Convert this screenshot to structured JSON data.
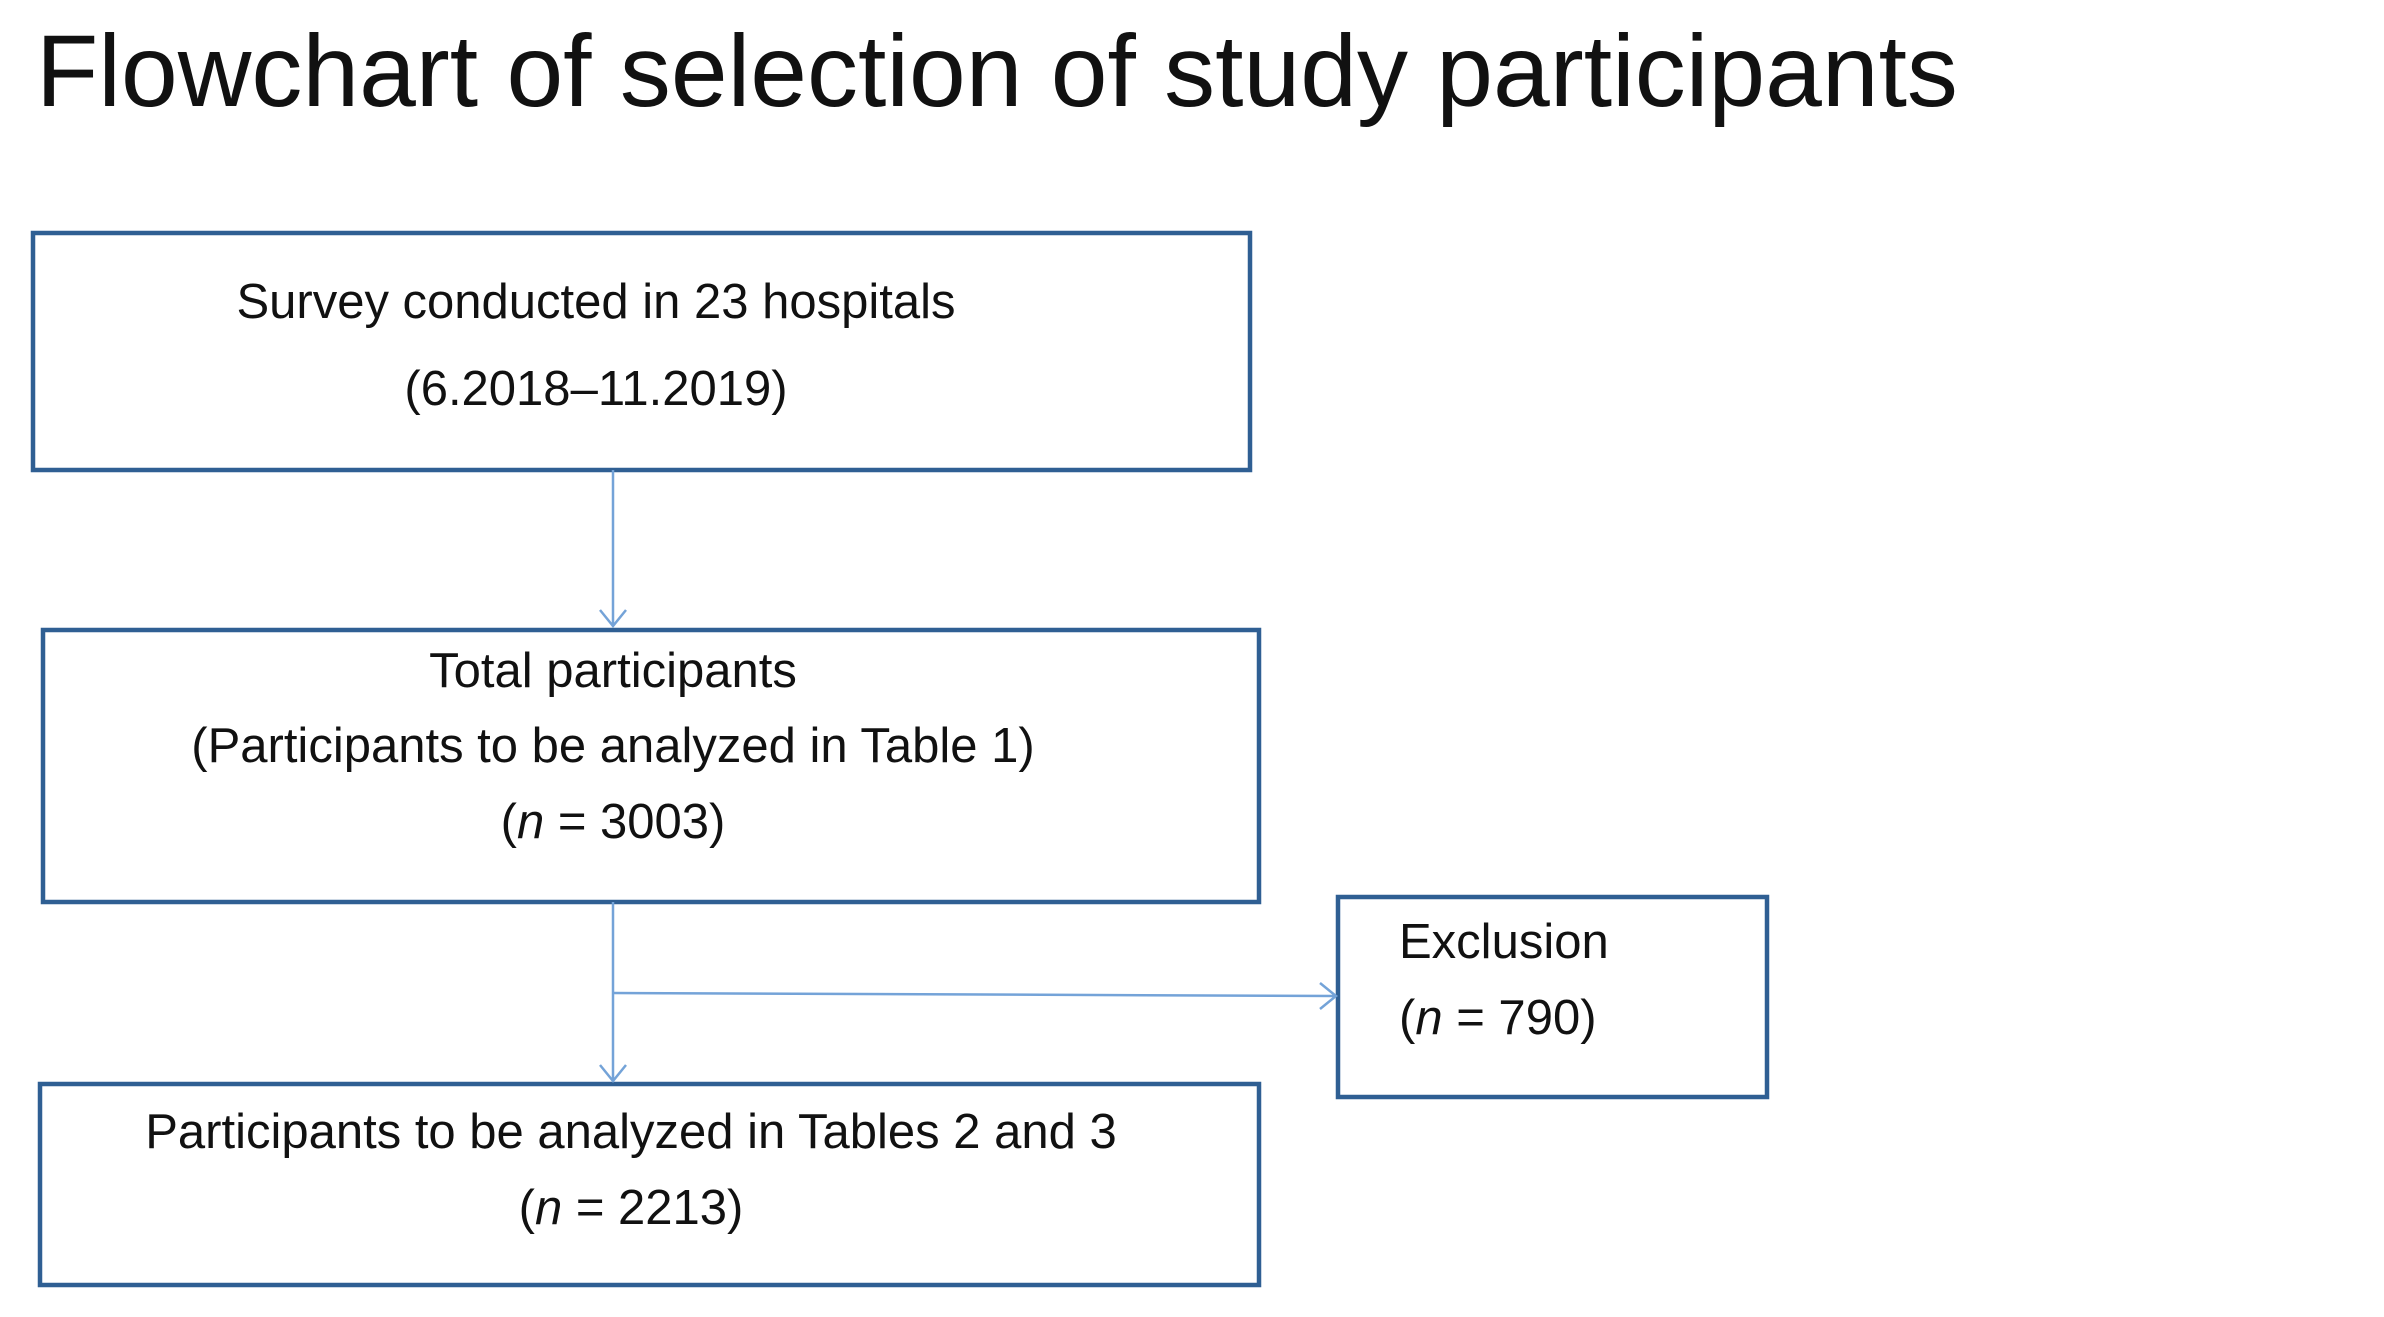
{
  "title": "Flowchart of selection of study participants",
  "nodes": [
    {
      "lines": [
        [
          "Survey conducted in 23 hospitals"
        ],
        [
          "(6.2018–11.2019)"
        ]
      ]
    },
    {
      "lines": [
        [
          "Total participants"
        ],
        [
          "(Participants to be analyzed in Table 1)"
        ],
        [
          "(",
          "n",
          " = 3003)"
        ]
      ]
    },
    {
      "lines": [
        [
          "Exclusion"
        ],
        [
          "(",
          "n",
          " = 790)"
        ]
      ]
    },
    {
      "lines": [
        [
          "Participants to be analyzed in Tables 2 and 3"
        ],
        [
          "(",
          "n",
          " = 2213)"
        ]
      ]
    }
  ]
}
